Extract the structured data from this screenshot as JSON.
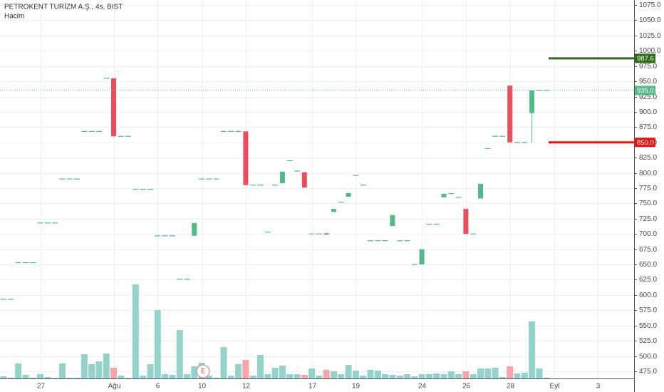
{
  "chart_data": {
    "type": "candlestick",
    "title": "PETROKENT TURİZM A.Ş., 4s, BIST",
    "volume_label": "Hacim",
    "event_label": "E",
    "categories": [
      null,
      null,
      null,
      null,
      null,
      "27",
      null,
      null,
      null,
      null,
      null,
      null,
      null,
      null,
      null,
      "Ağu",
      null,
      null,
      null,
      null,
      null,
      "6",
      null,
      null,
      null,
      null,
      null,
      "10",
      null,
      null,
      null,
      null,
      null,
      "12",
      null,
      null,
      null,
      null,
      null,
      null,
      null,
      null,
      "17",
      null,
      null,
      null,
      null,
      null,
      "19",
      null,
      null,
      null,
      null,
      null,
      null,
      null,
      null,
      "24",
      null,
      null,
      null,
      null,
      null,
      "26",
      null,
      null,
      null,
      null,
      null,
      "28",
      null,
      null,
      null,
      null,
      null,
      "Eyl",
      null,
      null,
      null,
      null,
      null,
      "3"
    ],
    "open": [
      593,
      593,
      653,
      653,
      653,
      718,
      718,
      718,
      790,
      790,
      790,
      868,
      868,
      868,
      955,
      955,
      860,
      860,
      773,
      773,
      773,
      697,
      697,
      697,
      626,
      626,
      697,
      790,
      790,
      790,
      868,
      868,
      868,
      868,
      780,
      780,
      703,
      780,
      783,
      820,
      803,
      801,
      700,
      700,
      701,
      736,
      752,
      761,
      796,
      780,
      689,
      689,
      689,
      713,
      689,
      689,
      650,
      650,
      716,
      716,
      760,
      766,
      760,
      741,
      700,
      758,
      840,
      860,
      860,
      943,
      850,
      850,
      898,
      935,
      935,
      null,
      null,
      null,
      null,
      null,
      null,
      null
    ],
    "close": [
      593,
      593,
      653,
      653,
      653,
      718,
      718,
      718,
      790,
      790,
      790,
      868,
      868,
      868,
      955,
      860,
      860,
      860,
      773,
      773,
      773,
      697,
      697,
      697,
      626,
      626,
      718,
      790,
      790,
      790,
      868,
      868,
      868,
      780,
      780,
      780,
      703,
      780,
      802,
      820,
      803,
      776,
      700,
      700,
      699,
      741,
      752,
      767,
      796,
      780,
      689,
      689,
      689,
      731,
      689,
      689,
      650,
      675,
      716,
      716,
      766,
      766,
      760,
      700,
      700,
      782,
      840,
      860,
      860,
      850,
      850,
      850,
      935,
      935,
      935,
      null,
      null,
      null,
      null,
      null,
      null,
      null
    ],
    "high": [
      593,
      593,
      653,
      653,
      653,
      718,
      718,
      718,
      790,
      790,
      790,
      868,
      868,
      868,
      955,
      955,
      860,
      860,
      773,
      773,
      773,
      697,
      697,
      697,
      626,
      626,
      718,
      790,
      790,
      790,
      868,
      868,
      868,
      868,
      780,
      780,
      703,
      780,
      802,
      820,
      803,
      801,
      700,
      700,
      701,
      741,
      752,
      767,
      796,
      780,
      689,
      689,
      689,
      731,
      689,
      689,
      650,
      675,
      716,
      716,
      766,
      766,
      760,
      741,
      700,
      782,
      840,
      860,
      860,
      943,
      850,
      850,
      935,
      935,
      935,
      null,
      null,
      null,
      null,
      null,
      null,
      null
    ],
    "low": [
      593,
      593,
      653,
      653,
      653,
      718,
      718,
      718,
      790,
      790,
      790,
      868,
      868,
      868,
      955,
      860,
      860,
      860,
      773,
      773,
      773,
      697,
      697,
      697,
      626,
      626,
      697,
      790,
      790,
      790,
      868,
      868,
      868,
      780,
      780,
      780,
      703,
      780,
      783,
      820,
      803,
      776,
      700,
      700,
      699,
      736,
      752,
      761,
      796,
      780,
      689,
      689,
      689,
      713,
      689,
      689,
      650,
      650,
      716,
      716,
      760,
      766,
      760,
      700,
      700,
      758,
      840,
      860,
      860,
      850,
      850,
      850,
      850,
      935,
      935,
      null,
      null,
      null,
      null,
      null,
      null,
      null
    ],
    "volume": [
      3,
      1,
      21,
      5,
      1,
      6,
      2,
      1,
      21,
      1,
      1,
      34,
      20,
      24,
      35,
      15,
      4,
      1,
      132,
      4,
      20,
      96,
      6,
      5,
      68,
      6,
      17,
      22,
      4,
      1,
      44,
      4,
      20,
      26,
      4,
      33,
      6,
      15,
      18,
      6,
      6,
      5,
      14,
      4,
      12,
      10,
      6,
      19,
      11,
      4,
      12,
      11,
      6,
      5,
      4,
      6,
      3,
      6,
      6,
      7,
      6,
      10,
      6,
      10,
      6,
      14,
      14,
      15,
      2,
      17,
      7,
      8,
      80,
      14,
      1,
      null,
      null,
      null,
      null,
      null,
      null,
      null
    ],
    "up_color": "#53b987",
    "down_color": "#eb4d5c",
    "volume_up_color": "#93d3ca",
    "volume_down_color": "#f7a4aa",
    "ylim": [
      470,
      1080
    ],
    "yticks": [
      {
        "value": 475,
        "label": "475.0"
      },
      {
        "value": 500,
        "label": "500.0"
      },
      {
        "value": 525,
        "label": "525.0"
      },
      {
        "value": 550,
        "label": "550.0"
      },
      {
        "value": 575,
        "label": "575.0"
      },
      {
        "value": 600,
        "label": "600.0"
      },
      {
        "value": 625,
        "label": "625.0"
      },
      {
        "value": 650,
        "label": "650.0"
      },
      {
        "value": 675,
        "label": "675.0"
      },
      {
        "value": 700,
        "label": "700.0"
      },
      {
        "value": 725,
        "label": "725.0"
      },
      {
        "value": 750,
        "label": "750.0"
      },
      {
        "value": 775,
        "label": "775.0"
      },
      {
        "value": 800,
        "label": "800.0"
      },
      {
        "value": 825,
        "label": "825.0"
      },
      {
        "value": 850,
        "label": "850.0"
      },
      {
        "value": 875,
        "label": "875.0"
      },
      {
        "value": 900,
        "label": "900.0"
      },
      {
        "value": 925,
        "label": "925.0"
      },
      {
        "value": 950,
        "label": "950.0"
      },
      {
        "value": 975,
        "label": "975.0"
      },
      {
        "value": 1000,
        "label": "1000.0"
      },
      {
        "value": 1025,
        "label": "1025.0"
      },
      {
        "value": 1050,
        "label": "1050.0"
      },
      {
        "value": 1075,
        "label": "1075.0"
      }
    ],
    "grid": true,
    "price_lines": [
      {
        "value": 987.6,
        "label": "987.6",
        "color": "#2f6b16",
        "style": "solid"
      },
      {
        "value": 935,
        "label": "935.0",
        "color": "#53b987",
        "style": "dotted"
      },
      {
        "value": 850,
        "label": "850.0",
        "color": "#f01010",
        "style": "solid"
      }
    ]
  }
}
